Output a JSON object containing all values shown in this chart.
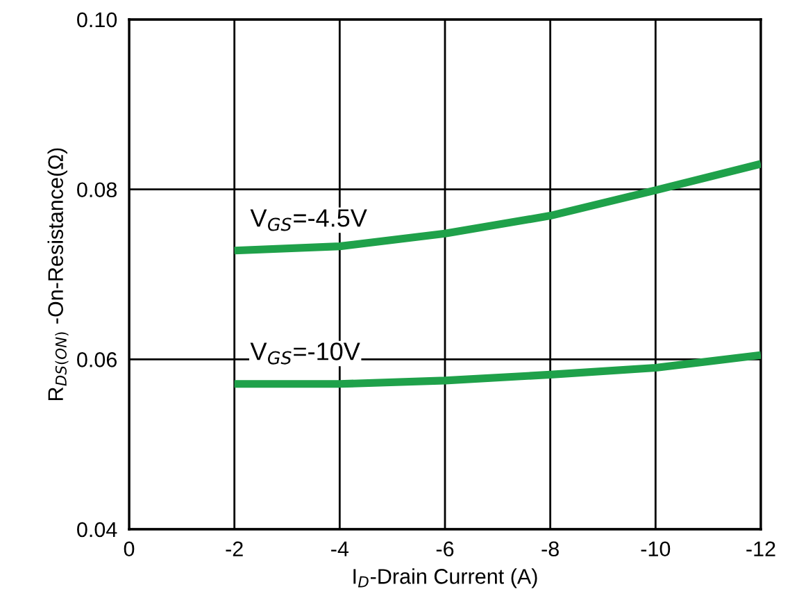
{
  "chart_data": {
    "type": "line",
    "xlabel": "I$_{D}$-Drain Current (A)",
    "ylabel": "R$_{DS(ON)}$ -On-Resistance(Ω)",
    "x": [
      -2,
      -4,
      -6,
      -8,
      -10,
      -12
    ],
    "series": [
      {
        "name": "V$_{GS}$=-4.5V",
        "color": "#1fa14a",
        "values": [
          0.0728,
          0.0733,
          0.0748,
          0.0769,
          0.0799,
          0.083
        ]
      },
      {
        "name": "V$_{GS}$=-10V",
        "color": "#1fa14a",
        "values": [
          0.0571,
          0.0571,
          0.0575,
          0.0582,
          0.059,
          0.0605
        ]
      }
    ],
    "xlim": [
      0,
      -12
    ],
    "xticks": [
      0,
      -2,
      -4,
      -6,
      -8,
      -10,
      -12
    ],
    "ylim": [
      0.04,
      0.1
    ],
    "yticks": [
      {
        "value": 0.04,
        "label": "0.04"
      },
      {
        "value": 0.06,
        "label": "0.06"
      },
      {
        "value": 0.08,
        "label": "0.08"
      },
      {
        "value": 0.1,
        "label": "0.10"
      }
    ],
    "grid": true,
    "line_style": "solid",
    "marker": "none"
  }
}
